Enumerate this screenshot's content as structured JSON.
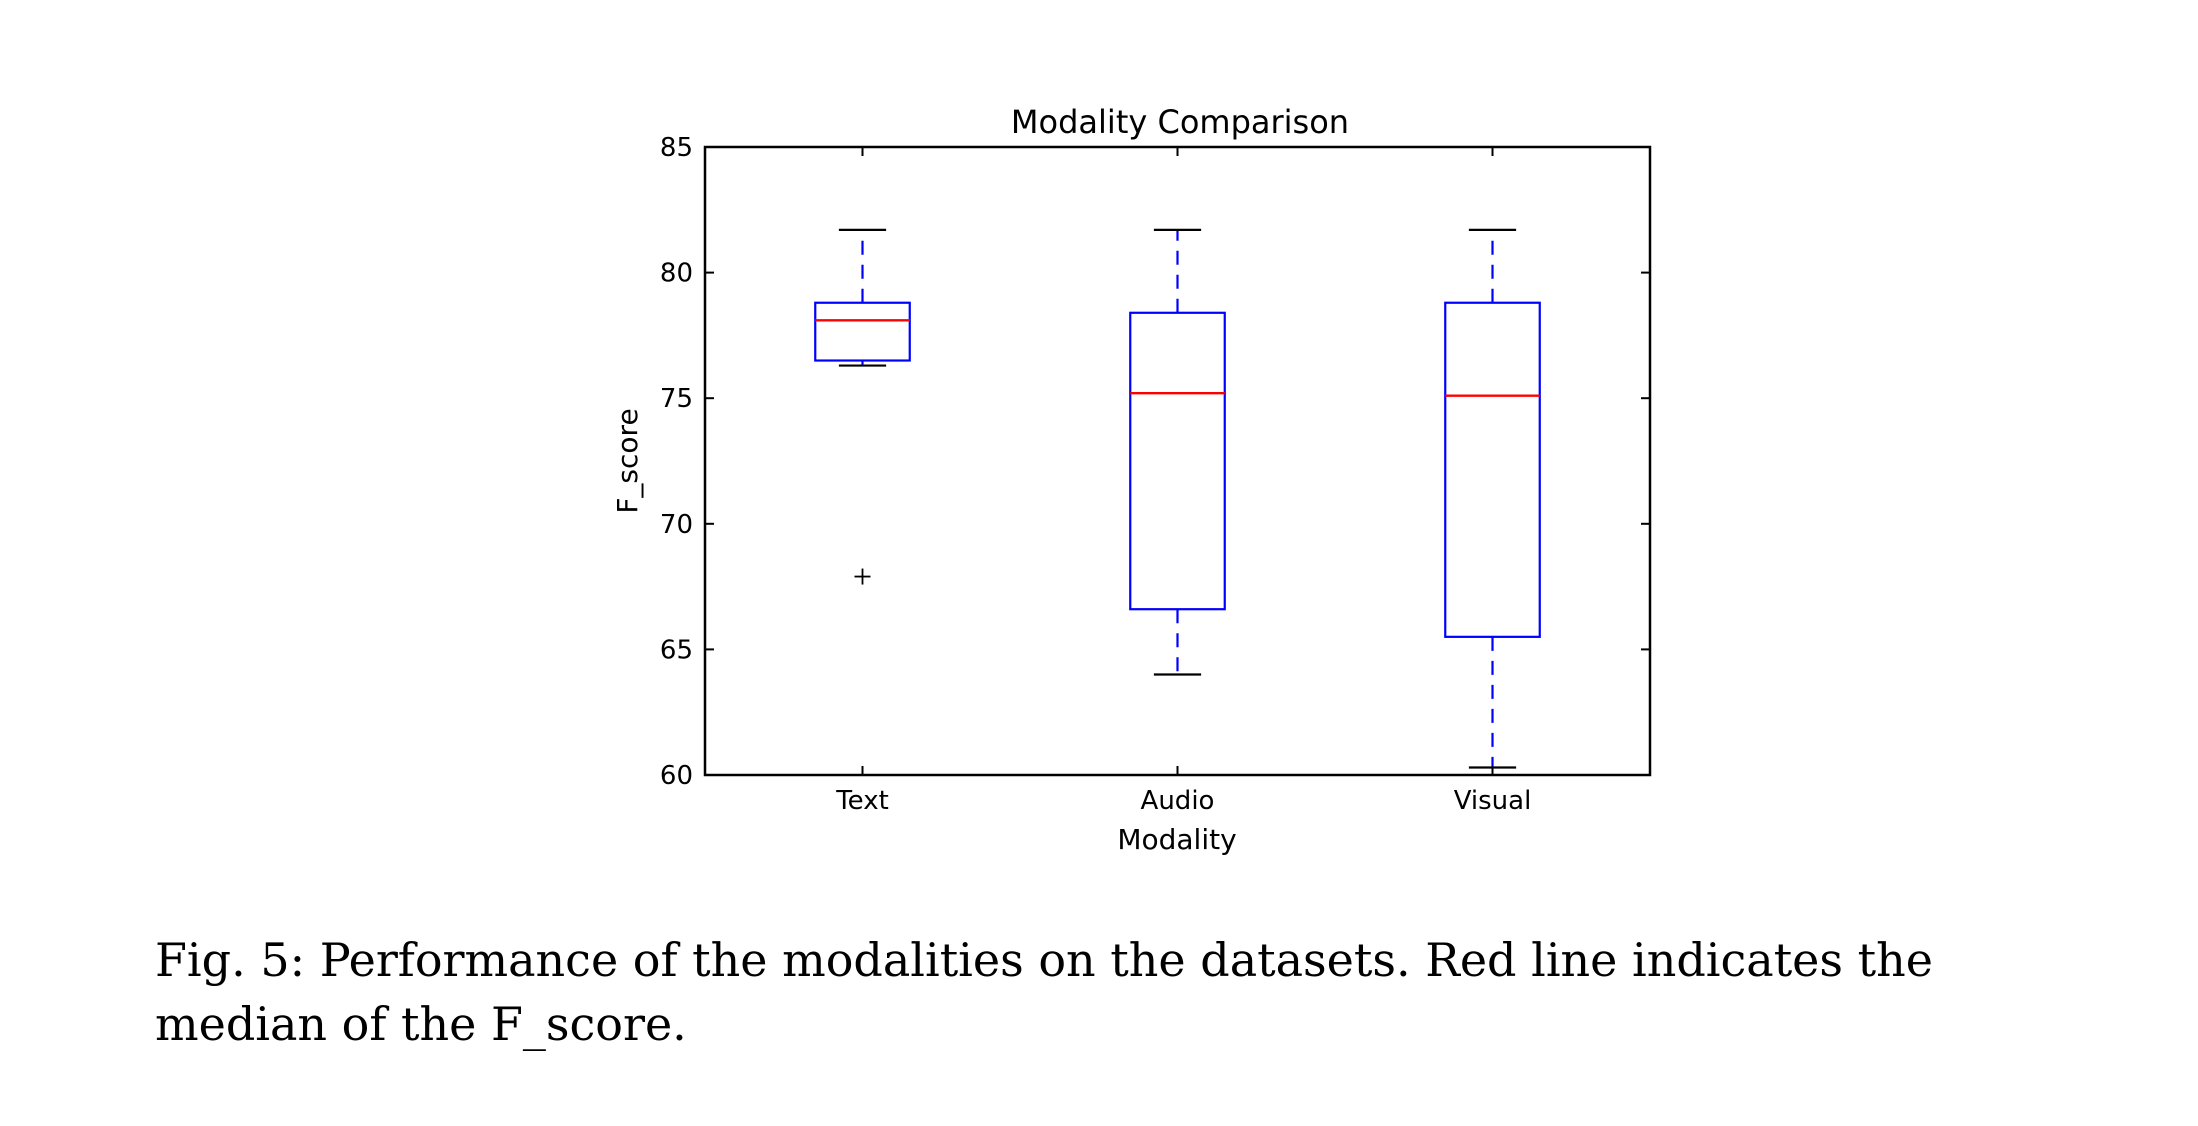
{
  "chart_data": {
    "type": "box",
    "title": "Modality Comparison",
    "xlabel": "Modality",
    "ylabel": "F_score",
    "ylim": [
      60,
      85
    ],
    "yticks": [
      "60",
      "65",
      "70",
      "75",
      "80",
      "85"
    ],
    "categories": [
      "Text",
      "Audio",
      "Visual"
    ],
    "boxes": [
      {
        "name": "Text",
        "whisker_low": 76.3,
        "q1": 76.5,
        "median": 78.1,
        "q3": 78.8,
        "whisker_high": 81.7,
        "outliers": [
          67.9
        ]
      },
      {
        "name": "Audio",
        "whisker_low": 64.0,
        "q1": 66.6,
        "median": 75.2,
        "q3": 78.4,
        "whisker_high": 81.7,
        "outliers": []
      },
      {
        "name": "Visual",
        "whisker_low": 60.3,
        "q1": 65.5,
        "median": 75.1,
        "q3": 78.8,
        "whisker_high": 81.7,
        "outliers": []
      }
    ],
    "colors": {
      "box": "#0000ff",
      "median": "#ff0000",
      "whisker": "#0000ff",
      "cap": "#000000",
      "outlier": "#000000"
    },
    "grid": false,
    "legend": "none"
  },
  "caption": {
    "line1": "Fig. 5: Performance of the modalities on the datasets. Red line indicates the",
    "line2": "median of the F_score."
  }
}
